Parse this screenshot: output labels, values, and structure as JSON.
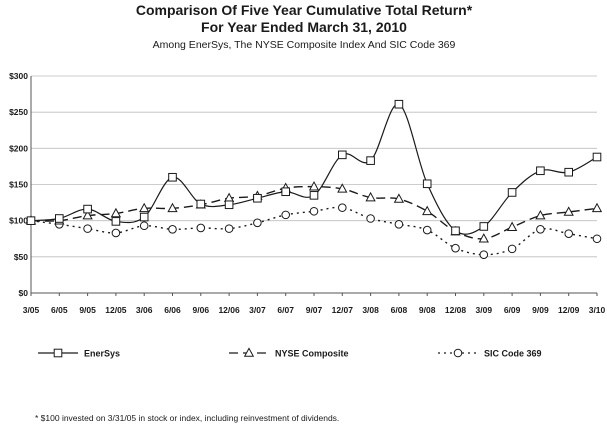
{
  "chart_data": {
    "type": "line",
    "title": "Comparison Of Five Year Cumulative Total Return*",
    "title2": "For Year Ended March 31, 2010",
    "subtitle": "Among EnerSys, The NYSE Composite Index And SIC Code 369",
    "xlabel": "",
    "ylabel": "",
    "ylim": [
      0,
      300
    ],
    "yticks": [
      0,
      50,
      100,
      150,
      200,
      250,
      300
    ],
    "ytick_labels": [
      "$0",
      "$50",
      "$100",
      "$150",
      "$200",
      "$250",
      "$300"
    ],
    "grid": true,
    "legend_position": "bottom",
    "categories": [
      "3/05",
      "6/05",
      "9/05",
      "12/05",
      "3/06",
      "6/06",
      "9/06",
      "12/06",
      "3/07",
      "6/07",
      "9/07",
      "12/07",
      "3/08",
      "6/08",
      "9/08",
      "12/08",
      "3/09",
      "6/09",
      "9/09",
      "12/09",
      "3/10"
    ],
    "series": [
      {
        "name": "EnerSys",
        "line_style": "solid",
        "marker": "square",
        "values": [
          100,
          103,
          116,
          99,
          105,
          160,
          123,
          122,
          131,
          140,
          135,
          191,
          183,
          261,
          151,
          86,
          92,
          139,
          169,
          167,
          188
        ]
      },
      {
        "name": "NYSE Composite",
        "line_style": "dashed",
        "marker": "triangle",
        "values": [
          100,
          100,
          107,
          110,
          117,
          117,
          122,
          131,
          134,
          145,
          147,
          144,
          132,
          130,
          113,
          85,
          75,
          91,
          107,
          112,
          117
        ]
      },
      {
        "name": "SIC Code 369",
        "line_style": "dotted",
        "marker": "circle",
        "values": [
          100,
          95,
          89,
          83,
          93,
          88,
          90,
          89,
          97,
          108,
          113,
          118,
          103,
          95,
          87,
          62,
          53,
          61,
          88,
          82,
          75
        ]
      }
    ],
    "footnote": "* $100 invested on 3/31/05 in stock or index, including reinvestment of dividends."
  },
  "colors": {
    "line": "#1a1a1a",
    "grid": "#bdbdbd",
    "axis": "#555555"
  }
}
